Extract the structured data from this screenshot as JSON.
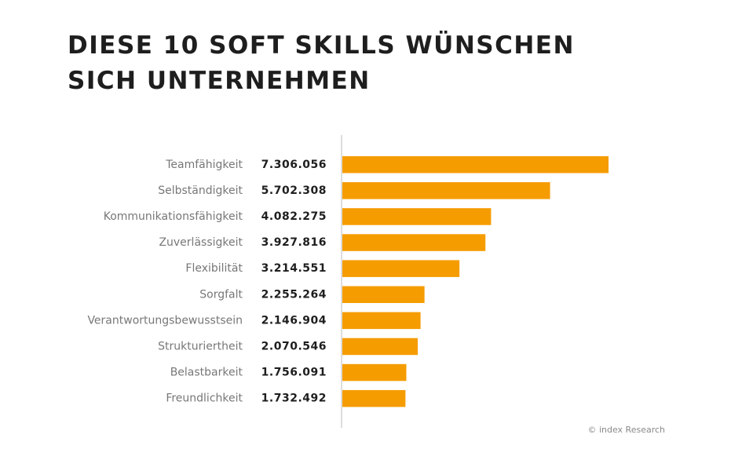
{
  "header": {
    "title_line1": "DIESE 10 SOFT SKILLS WÜNSCHEN",
    "title_line2": "SICH UNTERNEHMEN"
  },
  "source": "© index Research",
  "colors": {
    "bar": "#F59C00",
    "axis": "#bbbbbb"
  },
  "chart_data": {
    "type": "bar",
    "orientation": "horizontal",
    "title": "DIESE 10 SOFT SKILLS WÜNSCHEN SICH UNTERNEHMEN",
    "categories": [
      "Teamfähigkeit",
      "Selbständigkeit",
      "Kommunikationsfähigkeit",
      "Zuverlässigkeit",
      "Flexibilität",
      "Sorgfalt",
      "Verantwortungsbewusstsein",
      "Strukturiertheit",
      "Belastbarkeit",
      "Freundlichkeit"
    ],
    "values": [
      7306056,
      5702308,
      4082275,
      3927816,
      3214551,
      2255264,
      2146904,
      2070546,
      1756091,
      1732492
    ],
    "value_labels": [
      "7.306.056",
      "5.702.308",
      "4.082.275",
      "3.927.816",
      "3.214.551",
      "2.255.264",
      "2.146.904",
      "2.070.546",
      "1.756.091",
      "1.732.492"
    ],
    "xlim": [
      0,
      7306056
    ],
    "grid": false,
    "legend": "none"
  }
}
